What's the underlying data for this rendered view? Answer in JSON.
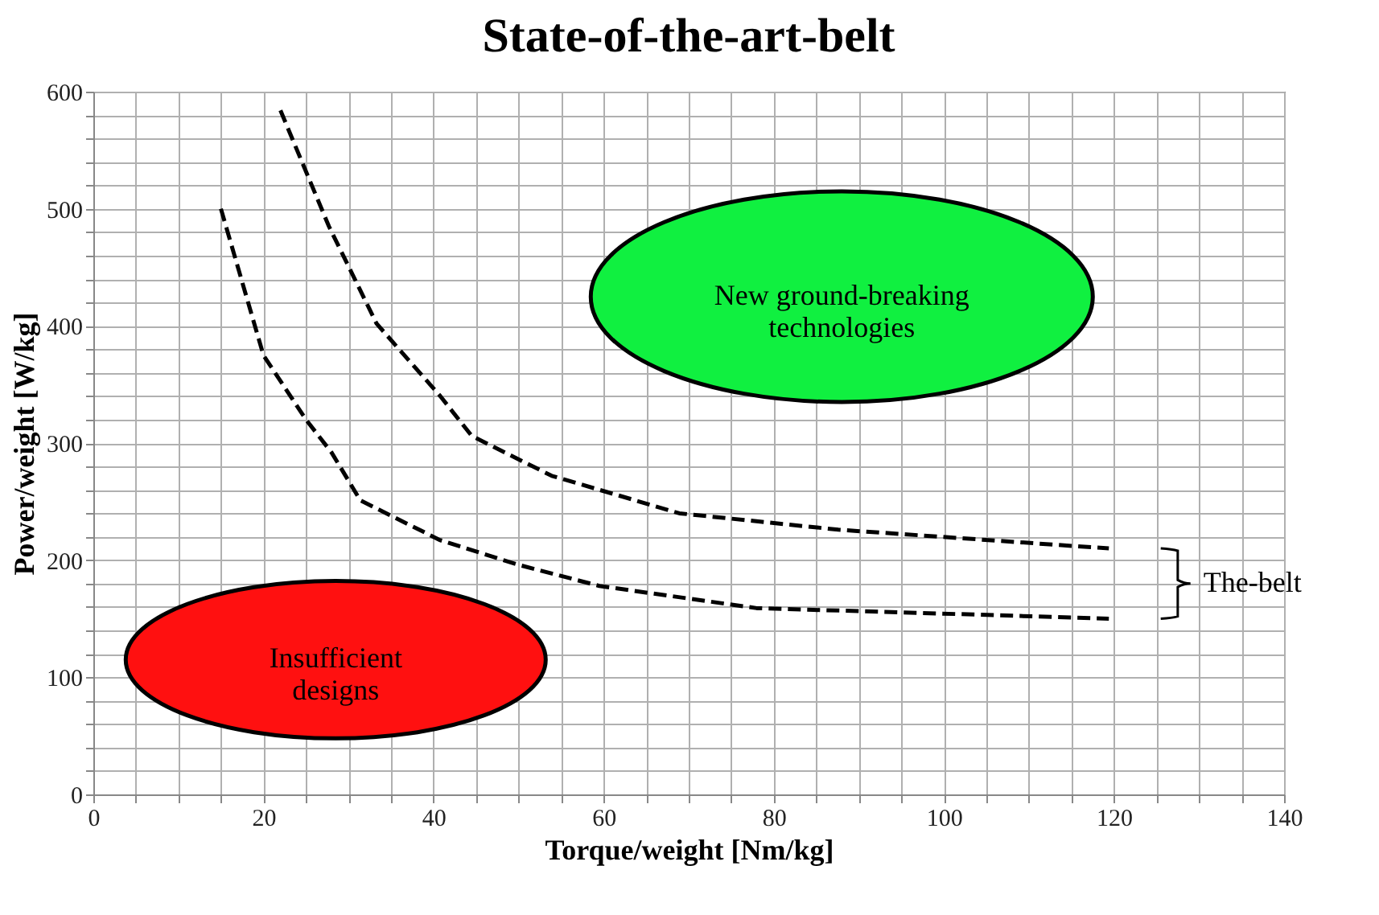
{
  "chart_data": {
    "type": "line",
    "title": "State-of-the-art-belt",
    "xlabel": "Torque/weight [Nm/kg]",
    "ylabel": "Power/weight [W/kg]",
    "series": [
      {
        "color": "#000000",
        "line_style": "dashed",
        "x": [
          15,
          20,
          25,
          28,
          31.4,
          40.8,
          50,
          59.5,
          78,
          97,
          119.4
        ],
        "values": [
          500,
          375,
          320,
          292,
          251,
          217,
          196,
          178,
          159,
          155,
          150
        ]
      },
      {
        "color": "#000000",
        "line_style": "dashed",
        "x": [
          22,
          27.7,
          33.3,
          40.8,
          44.5,
          53.9,
          68.9,
          87.6,
          119.4
        ],
        "values": [
          584,
          485,
          402,
          340,
          306,
          272,
          240,
          226,
          210
        ]
      }
    ],
    "marker": "none",
    "grid": true,
    "xlim": [
      0,
      140
    ],
    "ylim": [
      0,
      600
    ],
    "xticks": [
      0,
      {
        "value": 5,
        "label": null
      },
      {
        "value": 10,
        "label": null
      },
      {
        "value": 15,
        "label": null
      },
      20,
      {
        "value": 25,
        "label": null
      },
      {
        "value": 30,
        "label": null
      },
      {
        "value": 35,
        "label": null
      },
      40,
      {
        "value": 45,
        "label": null
      },
      {
        "value": 50,
        "label": null
      },
      {
        "value": 55,
        "label": null
      },
      60,
      {
        "value": 65,
        "label": null
      },
      {
        "value": 70,
        "label": null
      },
      {
        "value": 75,
        "label": null
      },
      80,
      {
        "value": 85,
        "label": null
      },
      {
        "value": 90,
        "label": null
      },
      {
        "value": 95,
        "label": null
      },
      100,
      {
        "value": 105,
        "label": null
      },
      {
        "value": 110,
        "label": null
      },
      {
        "value": 115,
        "label": null
      },
      120,
      {
        "value": 125,
        "label": null
      },
      {
        "value": 130,
        "label": null
      },
      {
        "value": 135,
        "label": null
      },
      140
    ],
    "yticks": [
      0,
      {
        "value": 20,
        "label": null
      },
      {
        "value": 40,
        "label": null
      },
      {
        "value": 60,
        "label": null
      },
      {
        "value": 80,
        "label": null
      },
      100,
      {
        "value": 120,
        "label": null
      },
      {
        "value": 140,
        "label": null
      },
      {
        "value": 160,
        "label": null
      },
      {
        "value": 180,
        "label": null
      },
      200,
      {
        "value": 220,
        "label": null
      },
      {
        "value": 240,
        "label": null
      },
      {
        "value": 260,
        "label": null
      },
      {
        "value": 280,
        "label": null
      },
      300,
      {
        "value": 320,
        "label": null
      },
      {
        "value": 340,
        "label": null
      },
      {
        "value": 360,
        "label": null
      },
      {
        "value": 380,
        "label": null
      },
      400,
      {
        "value": 420,
        "label": null
      },
      {
        "value": 440,
        "label": null
      },
      {
        "value": 460,
        "label": null
      },
      {
        "value": 480,
        "label": null
      },
      500,
      {
        "value": 520,
        "label": null
      },
      {
        "value": 540,
        "label": null
      },
      {
        "value": 560,
        "label": null
      },
      {
        "value": 580,
        "label": null
      },
      600
    ],
    "annotations": [
      "Insufficient\ndesigns",
      "New ground-breaking\ntechnologies",
      "The-belt"
    ]
  }
}
